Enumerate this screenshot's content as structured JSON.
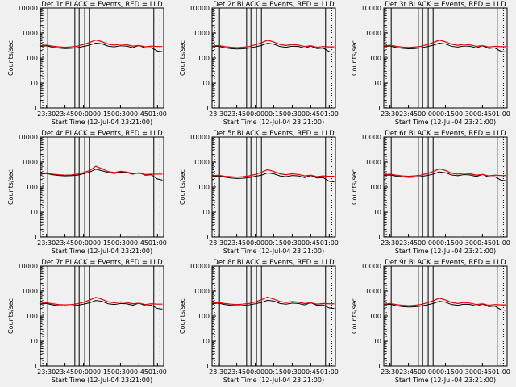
{
  "chart_data": [
    {
      "type": "line",
      "title": "Det 1r BLACK = Events, RED = LLD",
      "xlabel": "Start Time (12-Jul-04 23:21:00)",
      "ylabel": "Counts/sec",
      "yscale": "log",
      "ylim": [
        1,
        10000
      ],
      "xticks": [
        "23:30",
        "23:45",
        "00:00",
        "00:15",
        "00:30",
        "00:45",
        "01:00"
      ],
      "yticks": [
        "1",
        "10",
        "100",
        "1000",
        "10000"
      ],
      "series": [
        {
          "name": "Events",
          "color": "#000000",
          "x": [
            0,
            5,
            10,
            15,
            20,
            25,
            30,
            35,
            40,
            45,
            50,
            55,
            60,
            65,
            70,
            75,
            80,
            85,
            90,
            95,
            99
          ],
          "values": [
            290,
            310,
            270,
            250,
            240,
            245,
            260,
            290,
            330,
            400,
            370,
            300,
            280,
            310,
            300,
            260,
            320,
            250,
            260,
            190,
            180
          ]
        },
        {
          "name": "LLD",
          "color": "#e00000",
          "x": [
            0,
            5,
            10,
            15,
            20,
            25,
            30,
            35,
            40,
            45,
            50,
            55,
            60,
            65,
            70,
            75,
            80,
            85,
            90,
            95,
            99
          ],
          "values": [
            310,
            330,
            300,
            280,
            270,
            280,
            300,
            350,
            420,
            530,
            450,
            360,
            330,
            360,
            340,
            300,
            320,
            280,
            300,
            290,
            290
          ]
        }
      ]
    },
    {
      "type": "line",
      "title": "Det 2r BLACK = Events, RED = LLD",
      "xlabel": "Start Time (12-Jul-04 23:21:00)",
      "ylabel": "Counts/sec",
      "yscale": "log",
      "ylim": [
        1,
        10000
      ],
      "xticks": [
        "23:30",
        "23:45",
        "00:00",
        "00:15",
        "00:30",
        "00:45",
        "01:00"
      ],
      "yticks": [
        "1",
        "10",
        "100",
        "1000",
        "10000"
      ],
      "series": [
        {
          "name": "Events",
          "color": "#000000",
          "x": [
            0,
            5,
            10,
            15,
            20,
            25,
            30,
            35,
            40,
            45,
            50,
            55,
            60,
            65,
            70,
            75,
            80,
            85,
            90,
            95,
            99
          ],
          "values": [
            280,
            300,
            260,
            240,
            230,
            235,
            250,
            280,
            320,
            390,
            360,
            290,
            270,
            300,
            290,
            250,
            300,
            240,
            250,
            180,
            170
          ]
        },
        {
          "name": "LLD",
          "color": "#e00000",
          "x": [
            0,
            5,
            10,
            15,
            20,
            25,
            30,
            35,
            40,
            45,
            50,
            55,
            60,
            65,
            70,
            75,
            80,
            85,
            90,
            95,
            99
          ],
          "values": [
            300,
            320,
            290,
            270,
            260,
            270,
            290,
            340,
            410,
            520,
            440,
            350,
            320,
            350,
            330,
            290,
            310,
            270,
            290,
            280,
            280
          ]
        }
      ]
    },
    {
      "type": "line",
      "title": "Det 3r BLACK = Events, RED = LLD",
      "xlabel": "Start Time (12-Jul-04 23:21:00)",
      "ylabel": "Counts/sec",
      "yscale": "log",
      "ylim": [
        1,
        10000
      ],
      "xticks": [
        "23:30",
        "23:45",
        "00:00",
        "00:15",
        "00:30",
        "00:45",
        "01:00"
      ],
      "yticks": [
        "1",
        "10",
        "100",
        "1000",
        "10000"
      ],
      "series": [
        {
          "name": "Events",
          "color": "#000000",
          "x": [
            0,
            5,
            10,
            15,
            20,
            25,
            30,
            35,
            40,
            45,
            50,
            55,
            60,
            65,
            70,
            75,
            80,
            85,
            90,
            95,
            99
          ],
          "values": [
            285,
            305,
            265,
            245,
            235,
            240,
            255,
            285,
            325,
            395,
            365,
            295,
            275,
            305,
            295,
            255,
            310,
            245,
            255,
            185,
            175
          ]
        },
        {
          "name": "LLD",
          "color": "#e00000",
          "x": [
            0,
            5,
            10,
            15,
            20,
            25,
            30,
            35,
            40,
            45,
            50,
            55,
            60,
            65,
            70,
            75,
            80,
            85,
            90,
            95,
            99
          ],
          "values": [
            305,
            325,
            295,
            275,
            265,
            275,
            295,
            345,
            415,
            525,
            445,
            355,
            325,
            355,
            335,
            295,
            315,
            275,
            295,
            285,
            285
          ]
        }
      ]
    },
    {
      "type": "line",
      "title": "Det 4r BLACK = Events, RED = LLD",
      "xlabel": "Start Time (12-Jul-04 23:21:00)",
      "ylabel": "Counts/sec",
      "yscale": "log",
      "ylim": [
        1,
        10000
      ],
      "xticks": [
        "23:30",
        "23:45",
        "00:00",
        "00:15",
        "00:30",
        "00:45",
        "01:00"
      ],
      "yticks": [
        "1",
        "10",
        "100",
        "1000",
        "10000"
      ],
      "series": [
        {
          "name": "Events",
          "color": "#000000",
          "x": [
            0,
            5,
            10,
            15,
            20,
            25,
            30,
            35,
            40,
            45,
            50,
            55,
            60,
            65,
            70,
            75,
            80,
            85,
            90,
            95,
            99
          ],
          "values": [
            330,
            350,
            310,
            290,
            280,
            285,
            300,
            340,
            400,
            520,
            450,
            380,
            350,
            400,
            380,
            330,
            380,
            300,
            310,
            210,
            190
          ]
        },
        {
          "name": "LLD",
          "color": "#e00000",
          "x": [
            0,
            5,
            10,
            15,
            20,
            25,
            30,
            35,
            40,
            45,
            50,
            55,
            60,
            65,
            70,
            75,
            80,
            85,
            90,
            95,
            99
          ],
          "values": [
            350,
            370,
            330,
            310,
            300,
            305,
            330,
            380,
            460,
            680,
            540,
            420,
            380,
            430,
            400,
            350,
            360,
            320,
            330,
            330,
            330
          ]
        }
      ]
    },
    {
      "type": "line",
      "title": "Det 5r BLACK = Events, RED = LLD",
      "xlabel": "Start Time (12-Jul-04 23:21:00)",
      "ylabel": "Counts/sec",
      "yscale": "log",
      "ylim": [
        1,
        10000
      ],
      "xticks": [
        "23:30",
        "23:45",
        "00:00",
        "00:15",
        "00:30",
        "00:45",
        "01:00"
      ],
      "yticks": [
        "1",
        "10",
        "100",
        "1000",
        "10000"
      ],
      "series": [
        {
          "name": "Events",
          "color": "#000000",
          "x": [
            0,
            5,
            10,
            15,
            20,
            25,
            30,
            35,
            40,
            45,
            50,
            55,
            60,
            65,
            70,
            75,
            80,
            85,
            90,
            95,
            99
          ],
          "values": [
            260,
            280,
            250,
            230,
            220,
            225,
            240,
            270,
            300,
            370,
            340,
            280,
            260,
            290,
            280,
            240,
            290,
            230,
            240,
            170,
            160
          ]
        },
        {
          "name": "LLD",
          "color": "#e00000",
          "x": [
            0,
            5,
            10,
            15,
            20,
            25,
            30,
            35,
            40,
            45,
            50,
            55,
            60,
            65,
            70,
            75,
            80,
            85,
            90,
            95,
            99
          ],
          "values": [
            280,
            300,
            270,
            260,
            250,
            260,
            280,
            320,
            390,
            500,
            420,
            340,
            310,
            340,
            320,
            280,
            300,
            260,
            280,
            270,
            270
          ]
        }
      ]
    },
    {
      "type": "line",
      "title": "Det 6r BLACK = Events, RED = LLD",
      "xlabel": "Start Time (12-Jul-04 23:21:00)",
      "ylabel": "Counts/sec",
      "yscale": "log",
      "ylim": [
        1,
        10000
      ],
      "xticks": [
        "23:30",
        "23:45",
        "00:00",
        "00:15",
        "00:30",
        "00:45",
        "01:00"
      ],
      "yticks": [
        "1",
        "10",
        "100",
        "1000",
        "10000"
      ],
      "series": [
        {
          "name": "Events",
          "color": "#000000",
          "x": [
            0,
            5,
            10,
            15,
            20,
            25,
            30,
            35,
            40,
            45,
            50,
            55,
            60,
            65,
            70,
            75,
            80,
            85,
            90,
            95,
            99
          ],
          "values": [
            290,
            305,
            275,
            255,
            245,
            250,
            265,
            290,
            330,
            405,
            375,
            305,
            285,
            315,
            305,
            265,
            320,
            250,
            260,
            190,
            180
          ]
        },
        {
          "name": "LLD",
          "color": "#e00000",
          "x": [
            0,
            5,
            10,
            15,
            20,
            25,
            30,
            35,
            40,
            45,
            50,
            55,
            60,
            65,
            70,
            75,
            80,
            85,
            90,
            95,
            99
          ],
          "values": [
            310,
            330,
            300,
            280,
            270,
            280,
            300,
            350,
            420,
            540,
            460,
            360,
            330,
            360,
            340,
            300,
            320,
            280,
            300,
            290,
            290
          ]
        }
      ]
    },
    {
      "type": "line",
      "title": "Det 7r BLACK = Events, RED = LLD",
      "xlabel": "Start Time (12-Jul-04 23:21:00)",
      "ylabel": "Counts/sec",
      "yscale": "log",
      "ylim": [
        1,
        10000
      ],
      "xticks": [
        "23:30",
        "23:45",
        "00:00",
        "00:15",
        "00:30",
        "00:45",
        "01:00"
      ],
      "yticks": [
        "1",
        "10",
        "100",
        "1000",
        "10000"
      ],
      "series": [
        {
          "name": "Events",
          "color": "#000000",
          "x": [
            0,
            5,
            10,
            15,
            20,
            25,
            30,
            35,
            40,
            45,
            50,
            55,
            60,
            65,
            70,
            75,
            80,
            85,
            90,
            95,
            99
          ],
          "values": [
            300,
            320,
            280,
            260,
            250,
            255,
            270,
            300,
            340,
            420,
            390,
            310,
            290,
            320,
            310,
            270,
            330,
            260,
            270,
            200,
            190
          ]
        },
        {
          "name": "LLD",
          "color": "#e00000",
          "x": [
            0,
            5,
            10,
            15,
            20,
            25,
            30,
            35,
            40,
            45,
            50,
            55,
            60,
            65,
            70,
            75,
            80,
            85,
            90,
            95,
            99
          ],
          "values": [
            320,
            340,
            310,
            290,
            280,
            290,
            310,
            360,
            440,
            560,
            470,
            370,
            340,
            370,
            350,
            310,
            330,
            290,
            310,
            300,
            300
          ]
        }
      ]
    },
    {
      "type": "line",
      "title": "Det 8r BLACK = Events, RED = LLD",
      "xlabel": "Start Time (12-Jul-04 23:21:00)",
      "ylabel": "Counts/sec",
      "yscale": "log",
      "ylim": [
        1,
        10000
      ],
      "xticks": [
        "23:30",
        "23:45",
        "00:00",
        "00:15",
        "00:30",
        "00:45",
        "01:00"
      ],
      "yticks": [
        "1",
        "10",
        "100",
        "1000",
        "10000"
      ],
      "series": [
        {
          "name": "Events",
          "color": "#000000",
          "x": [
            0,
            5,
            10,
            15,
            20,
            25,
            30,
            35,
            40,
            45,
            50,
            55,
            60,
            65,
            70,
            75,
            80,
            85,
            90,
            95,
            99
          ],
          "values": [
            310,
            330,
            290,
            270,
            260,
            265,
            280,
            310,
            350,
            430,
            400,
            320,
            300,
            330,
            320,
            280,
            340,
            270,
            280,
            210,
            200
          ]
        },
        {
          "name": "LLD",
          "color": "#e00000",
          "x": [
            0,
            5,
            10,
            15,
            20,
            25,
            30,
            35,
            40,
            45,
            50,
            55,
            60,
            65,
            70,
            75,
            80,
            85,
            90,
            95,
            99
          ],
          "values": [
            330,
            350,
            320,
            300,
            290,
            300,
            320,
            370,
            450,
            570,
            480,
            380,
            350,
            380,
            360,
            320,
            340,
            300,
            320,
            310,
            310
          ]
        }
      ]
    },
    {
      "type": "line",
      "title": "Det 9r BLACK = Events, RED = LLD",
      "xlabel": "Start Time (12-Jul-04 23:21:00)",
      "ylabel": "Counts/sec",
      "yscale": "log",
      "ylim": [
        1,
        10000
      ],
      "xticks": [
        "23:30",
        "23:45",
        "00:00",
        "00:15",
        "00:30",
        "00:45",
        "01:00"
      ],
      "yticks": [
        "1",
        "10",
        "100",
        "1000",
        "10000"
      ],
      "series": [
        {
          "name": "Events",
          "color": "#000000",
          "x": [
            0,
            5,
            10,
            15,
            20,
            25,
            30,
            35,
            40,
            45,
            50,
            55,
            60,
            65,
            70,
            75,
            80,
            85,
            90,
            95,
            99
          ],
          "values": [
            280,
            300,
            260,
            240,
            230,
            235,
            250,
            280,
            320,
            390,
            360,
            290,
            270,
            300,
            290,
            250,
            300,
            240,
            250,
            180,
            170
          ]
        },
        {
          "name": "LLD",
          "color": "#e00000",
          "x": [
            0,
            5,
            10,
            15,
            20,
            25,
            30,
            35,
            40,
            45,
            50,
            55,
            60,
            65,
            70,
            75,
            80,
            85,
            90,
            95,
            99
          ],
          "values": [
            300,
            320,
            290,
            270,
            260,
            270,
            290,
            340,
            410,
            520,
            440,
            350,
            320,
            350,
            330,
            290,
            310,
            270,
            290,
            280,
            280
          ]
        }
      ]
    }
  ]
}
